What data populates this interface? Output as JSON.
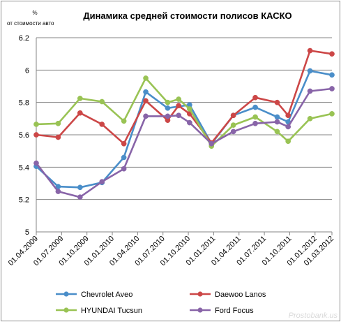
{
  "chart_data": {
    "type": "line",
    "title": "Динамика средней стоимости полисов КАСКО",
    "unit_label_top": "%",
    "unit_label_bottom": "от стоимости авто",
    "ylim": [
      5,
      6.2
    ],
    "yticks": [
      "5",
      "5.2",
      "5.4",
      "5.6",
      "5.8",
      "6",
      "6.2"
    ],
    "categories": [
      "01.04.2009",
      "01.07.2009",
      "01.10.2009",
      "01.01.2010",
      "01.04.2010",
      "01.07.2010",
      "01.10.2010",
      "01.01.2011",
      "01.04.2011",
      "01.07.2011",
      "01.10.2011",
      "01.01.2012",
      "01.03.2012"
    ],
    "x_positions": [
      0,
      3,
      6,
      9,
      12,
      15,
      18,
      21,
      24,
      27,
      30,
      33,
      35
    ],
    "grid": true,
    "legend_position": "bottom",
    "series": [
      {
        "name": "Chevrolet Aveo",
        "color": "#4a8ec9",
        "points": [
          [
            0,
            5.405
          ],
          [
            2,
            5.28
          ],
          [
            4,
            5.275
          ],
          [
            6,
            5.305
          ],
          [
            8,
            5.46
          ],
          [
            10,
            5.865
          ],
          [
            12,
            5.765
          ],
          [
            14,
            5.785
          ],
          [
            16,
            5.545
          ],
          [
            18,
            5.72
          ],
          [
            20,
            5.77
          ],
          [
            22,
            5.71
          ],
          [
            23,
            5.68
          ],
          [
            25,
            5.995
          ],
          [
            27,
            5.97
          ]
        ]
      },
      {
        "name": "Daewoo Lanos",
        "color": "#cc4747",
        "points": [
          [
            0,
            5.6
          ],
          [
            2,
            5.585
          ],
          [
            4,
            5.735
          ],
          [
            6,
            5.665
          ],
          [
            8,
            5.545
          ],
          [
            10,
            5.81
          ],
          [
            12,
            5.69
          ],
          [
            13,
            5.78
          ],
          [
            14,
            5.73
          ],
          [
            16,
            5.55
          ],
          [
            18,
            5.72
          ],
          [
            20,
            5.83
          ],
          [
            22,
            5.8
          ],
          [
            23,
            5.72
          ],
          [
            25,
            6.12
          ],
          [
            27,
            6.1
          ]
        ]
      },
      {
        "name": "HYUNDAI Tucsun",
        "color": "#99c354",
        "points": [
          [
            0,
            5.665
          ],
          [
            2,
            5.67
          ],
          [
            4,
            5.825
          ],
          [
            6,
            5.805
          ],
          [
            8,
            5.685
          ],
          [
            10,
            5.95
          ],
          [
            12,
            5.8
          ],
          [
            13,
            5.82
          ],
          [
            14,
            5.76
          ],
          [
            16,
            5.53
          ],
          [
            18,
            5.66
          ],
          [
            20,
            5.71
          ],
          [
            22,
            5.62
          ],
          [
            23,
            5.56
          ],
          [
            25,
            5.7
          ],
          [
            27,
            5.73
          ]
        ]
      },
      {
        "name": "Ford Focus",
        "color": "#8864a8",
        "points": [
          [
            0,
            5.425
          ],
          [
            2,
            5.25
          ],
          [
            4,
            5.215
          ],
          [
            6,
            5.31
          ],
          [
            8,
            5.39
          ],
          [
            10,
            5.715
          ],
          [
            12,
            5.715
          ],
          [
            13,
            5.72
          ],
          [
            14,
            5.675
          ],
          [
            16,
            5.545
          ],
          [
            18,
            5.62
          ],
          [
            20,
            5.67
          ],
          [
            22,
            5.68
          ],
          [
            23,
            5.65
          ],
          [
            25,
            5.87
          ],
          [
            27,
            5.885
          ]
        ]
      }
    ],
    "watermark": "Prostobank.us",
    "axis_color": "#868686",
    "grid_color": "#868686"
  }
}
